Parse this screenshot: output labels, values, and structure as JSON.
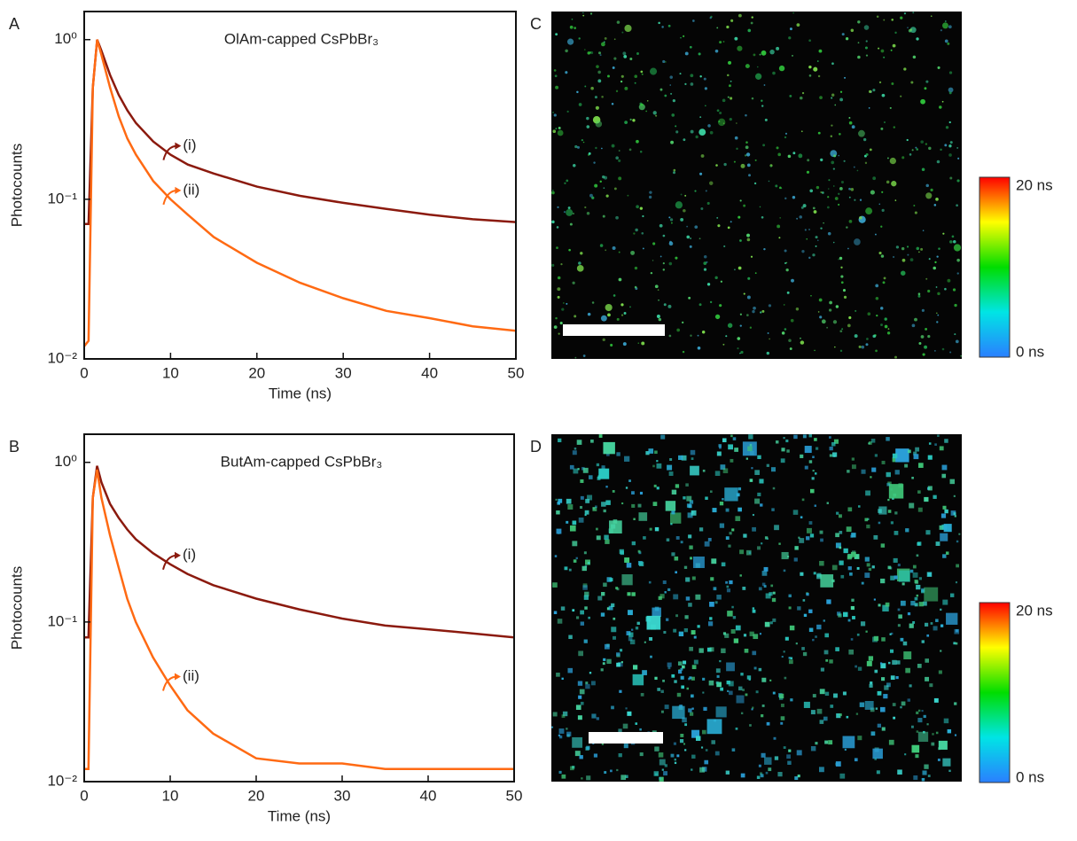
{
  "chart_data": [
    {
      "type": "line",
      "panel": "A",
      "title": "OlAm-capped CsPbBr₃",
      "x_label": "Time (ns)",
      "y_label": "Photocounts",
      "log_y": true,
      "x": [
        0,
        0.5,
        1,
        1.5,
        2,
        3,
        4,
        5,
        6,
        8,
        10,
        12,
        15,
        20,
        25,
        30,
        35,
        40,
        45,
        50
      ],
      "series": [
        {
          "name": "(i)",
          "color": "#8b1a0e",
          "values": [
            0.07,
            0.07,
            0.5,
            1.0,
            0.85,
            0.6,
            0.45,
            0.36,
            0.3,
            0.23,
            0.19,
            0.165,
            0.145,
            0.12,
            0.105,
            0.095,
            0.087,
            0.08,
            0.075,
            0.072
          ]
        },
        {
          "name": "(ii)",
          "color": "#ff6a13",
          "values": [
            0.012,
            0.013,
            0.5,
            1.0,
            0.8,
            0.5,
            0.33,
            0.24,
            0.19,
            0.13,
            0.1,
            0.08,
            0.058,
            0.04,
            0.03,
            0.024,
            0.02,
            0.018,
            0.016,
            0.015
          ]
        }
      ],
      "xlim": [
        0,
        50
      ],
      "xticks": [
        0,
        10,
        20,
        30,
        40,
        50
      ],
      "ylim": [
        0.01,
        1.5
      ],
      "yticks": [
        {
          "value": 0.01,
          "label": "10⁻²"
        },
        {
          "value": 0.1,
          "label": "10⁻¹"
        },
        {
          "value": 1,
          "label": "10⁰"
        }
      ]
    },
    {
      "type": "line",
      "panel": "B",
      "title": "ButAm-capped CsPbBr₃",
      "x_label": "Time (ns)",
      "y_label": "Photocounts",
      "log_y": true,
      "x": [
        0,
        0.5,
        1,
        1.5,
        2,
        3,
        4,
        5,
        6,
        8,
        10,
        12,
        15,
        20,
        25,
        30,
        35,
        40,
        45,
        50
      ],
      "series": [
        {
          "name": "(i)",
          "color": "#8b1a0e",
          "values": [
            0.08,
            0.08,
            0.6,
            0.95,
            0.75,
            0.55,
            0.45,
            0.38,
            0.33,
            0.27,
            0.23,
            0.2,
            0.17,
            0.14,
            0.12,
            0.105,
            0.095,
            0.09,
            0.085,
            0.08
          ]
        },
        {
          "name": "(ii)",
          "color": "#ff6a13",
          "values": [
            0.012,
            0.012,
            0.6,
            0.9,
            0.6,
            0.35,
            0.22,
            0.14,
            0.1,
            0.06,
            0.04,
            0.028,
            0.02,
            0.014,
            0.013,
            0.013,
            0.012,
            0.012,
            0.012,
            0.012
          ]
        }
      ],
      "xlim": [
        0,
        50
      ],
      "xticks": [
        0,
        10,
        20,
        30,
        40,
        50
      ],
      "ylim": [
        0.01,
        1.5
      ],
      "yticks": [
        {
          "value": 0.01,
          "label": "10⁻²"
        },
        {
          "value": 0.1,
          "label": "10⁻¹"
        },
        {
          "value": 1,
          "label": "10⁰"
        }
      ]
    }
  ],
  "images": [
    {
      "panel": "C",
      "colorbar_max": "20 ns",
      "colorbar_min": "0 ns"
    },
    {
      "panel": "D",
      "colorbar_max": "20 ns",
      "colorbar_min": "0 ns"
    }
  ]
}
